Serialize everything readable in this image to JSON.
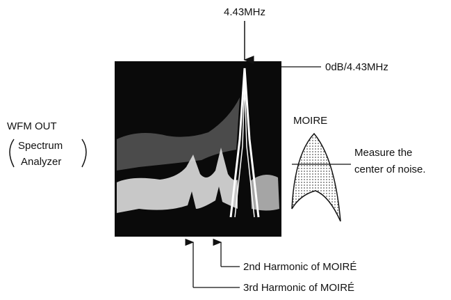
{
  "labels": {
    "top_frequency": "4.43MHz",
    "reference_level": "0dB/4.43MHz",
    "output": "WFM OUT",
    "output_device": [
      "Spectrum",
      "Analyzer"
    ],
    "moire_title": "MOIRE",
    "moire_note": [
      "Measure the",
      "center of noise."
    ],
    "second_harmonic": "2nd Harmonic of MOIRÉ",
    "third_harmonic": "3rd Harmonic of MOIRÉ"
  }
}
